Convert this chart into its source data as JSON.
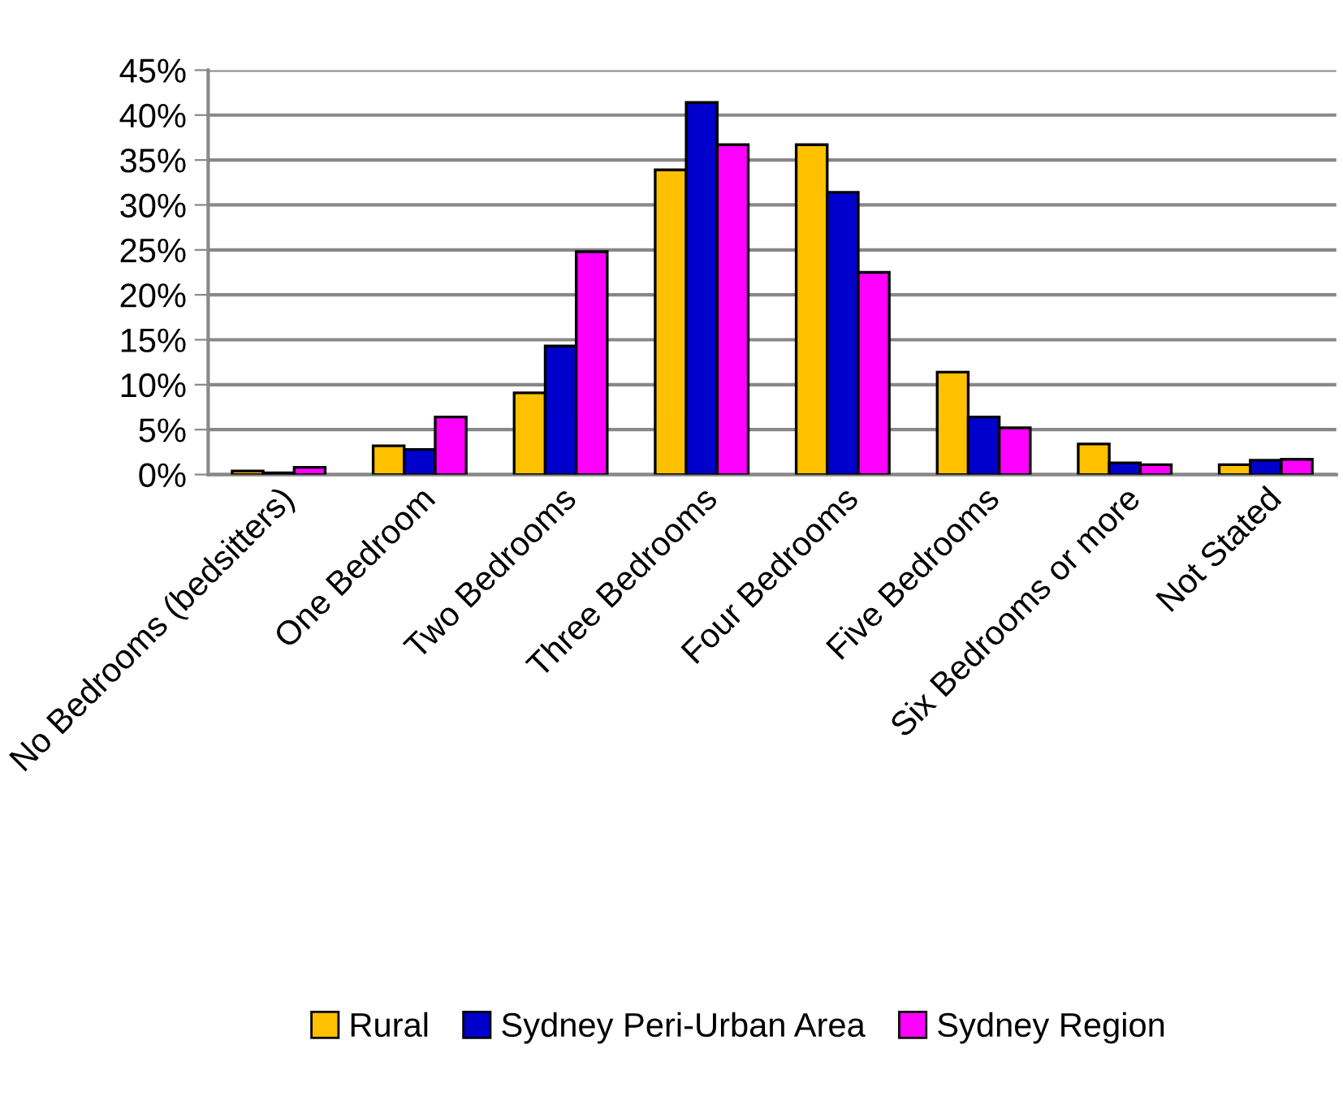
{
  "chart_data": {
    "type": "bar",
    "categories": [
      "No Bedrooms (bedsitters)",
      "One Bedroom",
      "Two Bedrooms",
      "Three Bedrooms",
      "Four Bedrooms",
      "Five Bedrooms",
      "Six Bedrooms or more",
      "Not Stated"
    ],
    "series": [
      {
        "name": "Rural",
        "color": "#ffc000",
        "values": [
          0.4,
          3.2,
          9.1,
          33.9,
          36.7,
          11.4,
          3.4,
          1.1
        ]
      },
      {
        "name": "Sydney Peri-Urban Area",
        "color": "#0000cc",
        "values": [
          0.2,
          2.8,
          14.3,
          41.4,
          31.4,
          6.4,
          1.3,
          1.6
        ]
      },
      {
        "name": "Sydney Region",
        "color": "#ff00ff",
        "values": [
          0.8,
          6.4,
          24.8,
          36.7,
          22.5,
          5.2,
          1.1,
          1.7
        ]
      }
    ],
    "ylim": [
      0,
      45
    ],
    "yticks": [
      {
        "value": 0,
        "label": "0%"
      },
      {
        "value": 5,
        "label": "5%"
      },
      {
        "value": 10,
        "label": "10%"
      },
      {
        "value": 15,
        "label": "15%"
      },
      {
        "value": 20,
        "label": "20%"
      },
      {
        "value": 25,
        "label": "25%"
      },
      {
        "value": 30,
        "label": "30%"
      },
      {
        "value": 35,
        "label": "35%"
      },
      {
        "value": 40,
        "label": "40%"
      },
      {
        "value": 45,
        "label": "45%"
      }
    ],
    "grid": "y",
    "legend": "bottom"
  }
}
